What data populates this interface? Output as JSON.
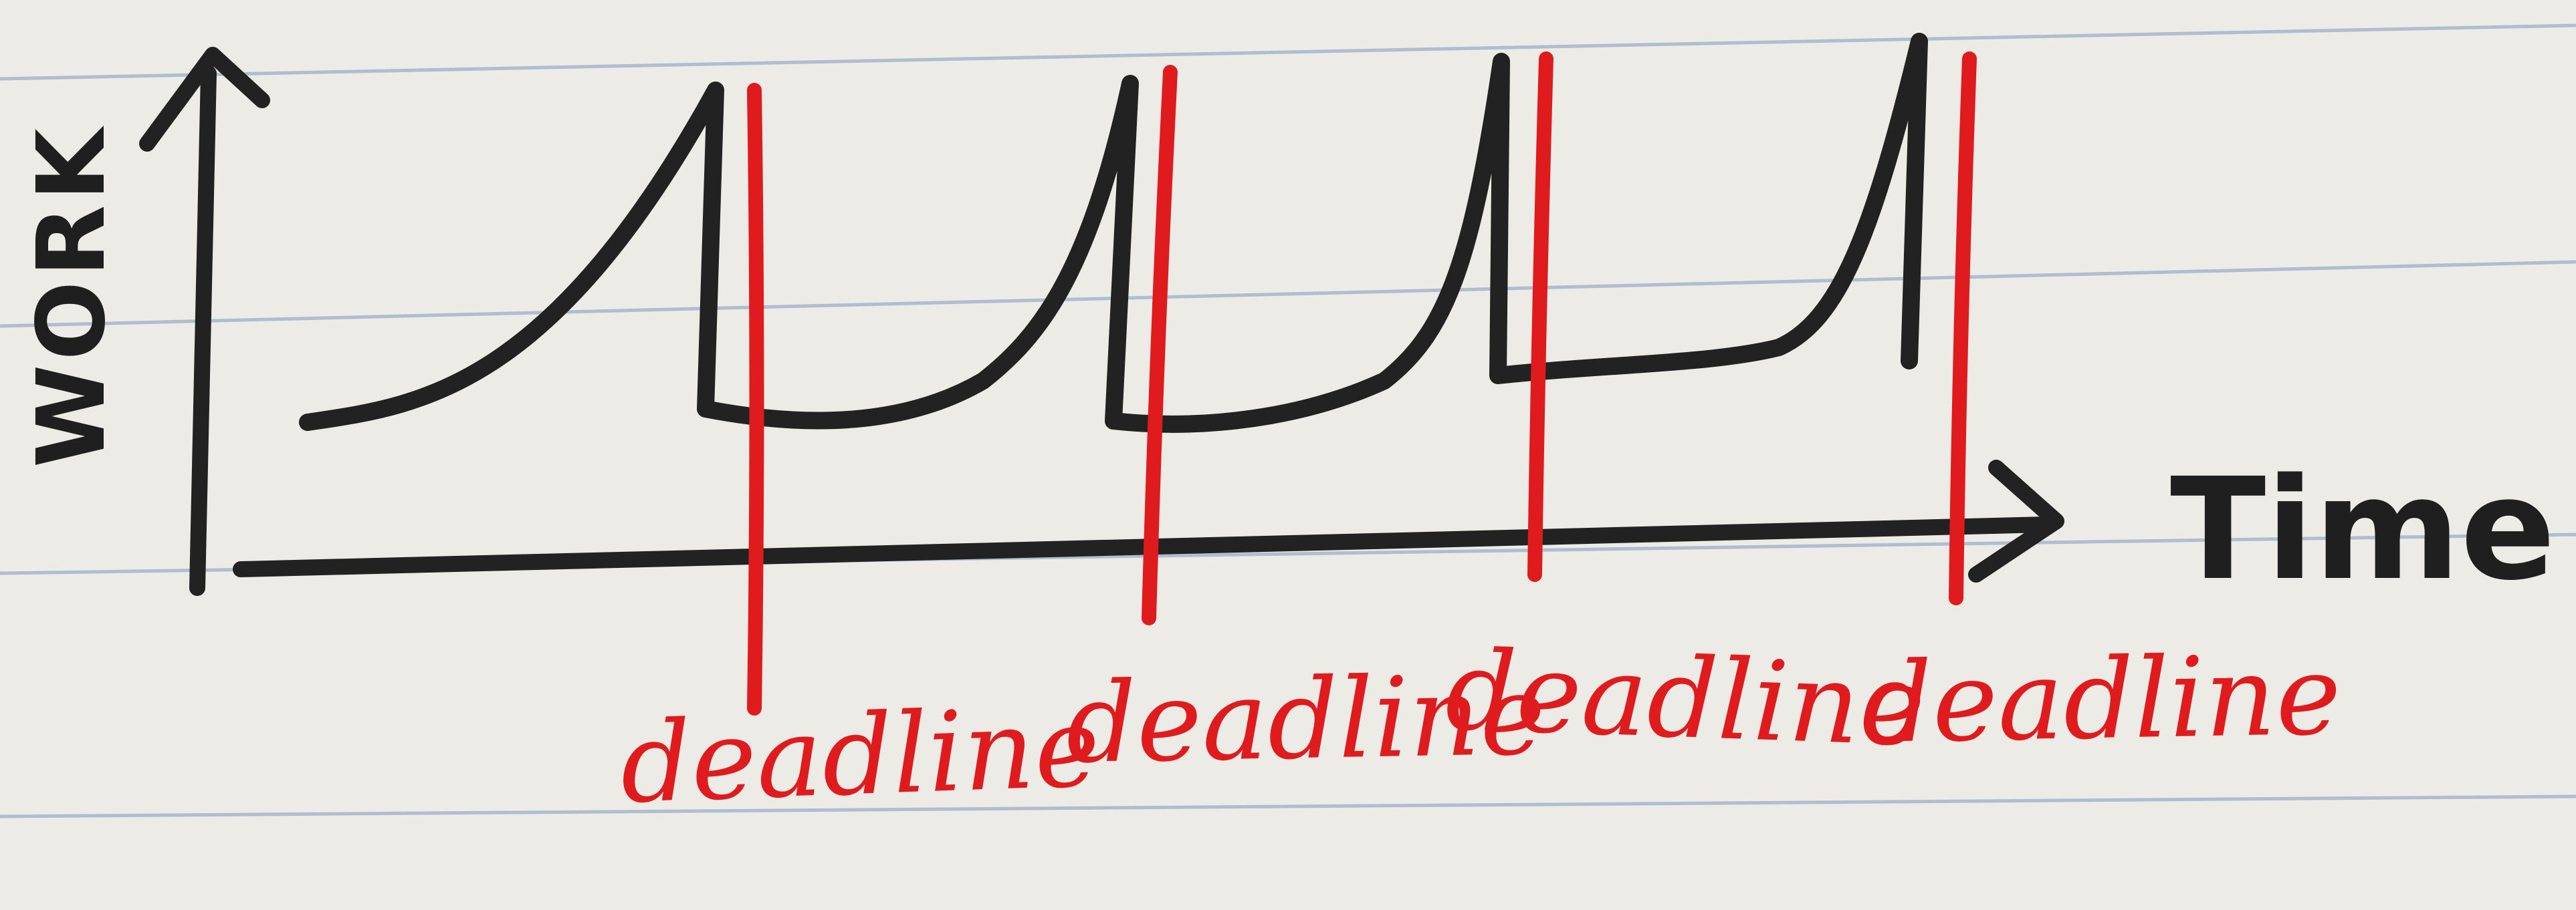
{
  "diagram": {
    "y_axis_label": "WORK",
    "x_axis_label": "Time",
    "deadline_labels": [
      "deadline",
      "deadline",
      "deadline",
      "deadline"
    ]
  },
  "colors": {
    "paper": "#ecebe6",
    "ruled_line": "#9fb2cc",
    "work_ink": "#222222",
    "deadline_ink": "#e01b1e"
  }
}
